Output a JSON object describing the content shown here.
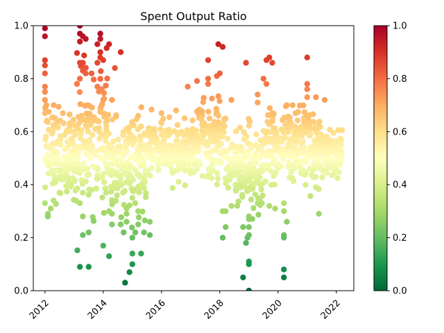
{
  "chart_data": {
    "type": "scatter",
    "title": "Spent Output Ratio",
    "xlabel": "",
    "ylabel": "",
    "xlim": [
      2011.6,
      2022.6
    ],
    "ylim": [
      0.0,
      1.0
    ],
    "x_ticks": [
      2012,
      2014,
      2016,
      2018,
      2020,
      2022
    ],
    "x_tick_labels": [
      "2012",
      "2014",
      "2016",
      "2018",
      "2020",
      "2022"
    ],
    "y_ticks": [
      0.0,
      0.2,
      0.4,
      0.6,
      0.8,
      1.0
    ],
    "y_tick_labels": [
      "0.0",
      "0.2",
      "0.4",
      "0.6",
      "0.8",
      "1.0"
    ],
    "grid": false,
    "colormap": "RdYlGn_r",
    "colorbar": {
      "range": [
        0.0,
        1.0
      ],
      "ticks": [
        0.0,
        0.2,
        0.4,
        0.6,
        0.8,
        1.0
      ],
      "tick_labels": [
        "0.0",
        "0.2",
        "0.4",
        "0.6",
        "0.8",
        "1.0"
      ],
      "colors": [
        "#006837",
        "#1a9850",
        "#66bd63",
        "#a6d96a",
        "#d9ef8b",
        "#ffffbf",
        "#fee08b",
        "#fdae61",
        "#f46d43",
        "#d73027",
        "#a50026"
      ]
    },
    "segments": [
      {
        "x_start": 2012.0,
        "x_end": 2013.1,
        "center": 0.52,
        "spread": 0.08
      },
      {
        "x_start": 2013.1,
        "x_end": 2014.2,
        "center": 0.57,
        "spread": 0.12
      },
      {
        "x_start": 2014.2,
        "x_end": 2015.5,
        "center": 0.47,
        "spread": 0.08
      },
      {
        "x_start": 2015.5,
        "x_end": 2017.0,
        "center": 0.53,
        "spread": 0.05
      },
      {
        "x_start": 2017.0,
        "x_end": 2018.2,
        "center": 0.57,
        "spread": 0.07
      },
      {
        "x_start": 2018.2,
        "x_end": 2019.5,
        "center": 0.47,
        "spread": 0.07
      },
      {
        "x_start": 2019.5,
        "x_end": 2021.5,
        "center": 0.54,
        "spread": 0.07
      },
      {
        "x_start": 2021.5,
        "x_end": 2022.2,
        "center": 0.52,
        "spread": 0.04
      }
    ],
    "outliers": [
      [
        2012.0,
        0.99
      ],
      [
        2012.0,
        0.96
      ],
      [
        2012.0,
        0.87
      ],
      [
        2012.0,
        0.85
      ],
      [
        2012.0,
        0.82
      ],
      [
        2012.0,
        0.77
      ],
      [
        2012.0,
        0.75
      ],
      [
        2012.0,
        0.72
      ],
      [
        2012.05,
        0.7
      ],
      [
        2012.0,
        0.67
      ],
      [
        2012.3,
        0.7
      ],
      [
        2012.0,
        0.33
      ],
      [
        2012.1,
        0.29
      ],
      [
        2012.1,
        0.28
      ],
      [
        2012.2,
        0.31
      ],
      [
        2012.3,
        0.34
      ],
      [
        2012.5,
        0.37
      ],
      [
        2012.8,
        0.41
      ],
      [
        2013.2,
        1.0
      ],
      [
        2013.2,
        0.97
      ],
      [
        2013.3,
        0.96
      ],
      [
        2013.2,
        0.94
      ],
      [
        2013.4,
        0.95
      ],
      [
        2013.2,
        0.86
      ],
      [
        2013.3,
        0.86
      ],
      [
        2013.1,
        0.78
      ],
      [
        2013.2,
        0.8
      ],
      [
        2013.3,
        0.83
      ],
      [
        2013.4,
        0.82
      ],
      [
        2013.6,
        0.82
      ],
      [
        2013.8,
        0.86
      ],
      [
        2013.9,
        0.88
      ],
      [
        2013.8,
        0.93
      ],
      [
        2013.9,
        0.97
      ],
      [
        2013.9,
        0.95
      ],
      [
        2014.0,
        0.87
      ],
      [
        2014.2,
        0.93
      ],
      [
        2014.4,
        0.84
      ],
      [
        2014.6,
        0.9
      ],
      [
        2013.9,
        0.9
      ],
      [
        2013.8,
        0.77
      ],
      [
        2013.95,
        0.76
      ],
      [
        2014.0,
        0.72
      ],
      [
        2014.3,
        0.72
      ],
      [
        2013.9,
        0.8
      ],
      [
        2013.2,
        0.33
      ],
      [
        2013.3,
        0.37
      ],
      [
        2013.3,
        0.28
      ],
      [
        2013.3,
        0.21
      ],
      [
        2013.5,
        0.22
      ],
      [
        2013.2,
        0.09
      ],
      [
        2013.5,
        0.09
      ],
      [
        2014.0,
        0.17
      ],
      [
        2014.2,
        0.13
      ],
      [
        2014.2,
        0.3
      ],
      [
        2014.3,
        0.29
      ],
      [
        2014.3,
        0.25
      ],
      [
        2014.1,
        0.37
      ],
      [
        2013.6,
        0.38
      ],
      [
        2014.6,
        0.25
      ],
      [
        2014.7,
        0.22
      ],
      [
        2014.8,
        0.26
      ],
      [
        2014.8,
        0.29
      ],
      [
        2014.75,
        0.03
      ],
      [
        2014.9,
        0.07
      ],
      [
        2015.0,
        0.1
      ],
      [
        2015.0,
        0.14
      ],
      [
        2015.0,
        0.2
      ],
      [
        2015.1,
        0.22
      ],
      [
        2015.2,
        0.25
      ],
      [
        2015.3,
        0.14
      ],
      [
        2015.4,
        0.22
      ],
      [
        2015.6,
        0.26
      ],
      [
        2015.6,
        0.21
      ],
      [
        2014.8,
        0.31
      ],
      [
        2015.2,
        0.3
      ],
      [
        2015.1,
        0.33
      ],
      [
        2015.0,
        0.35
      ],
      [
        2015.2,
        0.66
      ],
      [
        2015.3,
        0.62
      ],
      [
        2016.0,
        0.67
      ],
      [
        2016.5,
        0.68
      ],
      [
        2016.9,
        0.77
      ],
      [
        2017.6,
        0.87
      ],
      [
        2017.6,
        0.8
      ],
      [
        2017.6,
        0.78
      ],
      [
        2017.9,
        0.81
      ],
      [
        2018.0,
        0.82
      ],
      [
        2017.95,
        0.93
      ],
      [
        2018.1,
        0.92
      ],
      [
        2018.4,
        0.72
      ],
      [
        2018.2,
        0.3
      ],
      [
        2018.1,
        0.3
      ],
      [
        2018.1,
        0.2
      ],
      [
        2018.2,
        0.24
      ],
      [
        2018.4,
        0.32
      ],
      [
        2018.6,
        0.32
      ],
      [
        2018.8,
        0.24
      ],
      [
        2018.8,
        0.05
      ],
      [
        2018.9,
        0.86
      ],
      [
        2019.0,
        0.28
      ],
      [
        2019.0,
        0.27
      ],
      [
        2019.0,
        0.24
      ],
      [
        2018.95,
        0.2
      ],
      [
        2018.9,
        0.18
      ],
      [
        2019.0,
        0.21
      ],
      [
        2019.0,
        0.11
      ],
      [
        2019.0,
        0.1
      ],
      [
        2019.0,
        0.0
      ],
      [
        2019.3,
        0.33
      ],
      [
        2019.3,
        0.74
      ],
      [
        2019.3,
        0.71
      ],
      [
        2019.5,
        0.8
      ],
      [
        2019.6,
        0.87
      ],
      [
        2019.7,
        0.88
      ],
      [
        2019.8,
        0.86
      ],
      [
        2019.6,
        0.78
      ],
      [
        2019.8,
        0.67
      ],
      [
        2019.7,
        0.32
      ],
      [
        2019.9,
        0.31
      ],
      [
        2020.2,
        0.33
      ],
      [
        2020.2,
        0.3
      ],
      [
        2020.2,
        0.21
      ],
      [
        2020.2,
        0.2
      ],
      [
        2020.3,
        0.26
      ],
      [
        2020.2,
        0.08
      ],
      [
        2020.2,
        0.05
      ],
      [
        2020.3,
        0.7
      ],
      [
        2020.5,
        0.7
      ],
      [
        2020.6,
        0.67
      ],
      [
        2021.0,
        0.88
      ],
      [
        2021.0,
        0.78
      ],
      [
        2021.0,
        0.76
      ],
      [
        2021.0,
        0.73
      ],
      [
        2021.3,
        0.73
      ],
      [
        2021.6,
        0.72
      ],
      [
        2021.4,
        0.29
      ],
      [
        2021.3,
        0.39
      ],
      [
        2022.0,
        0.45
      ]
    ]
  }
}
